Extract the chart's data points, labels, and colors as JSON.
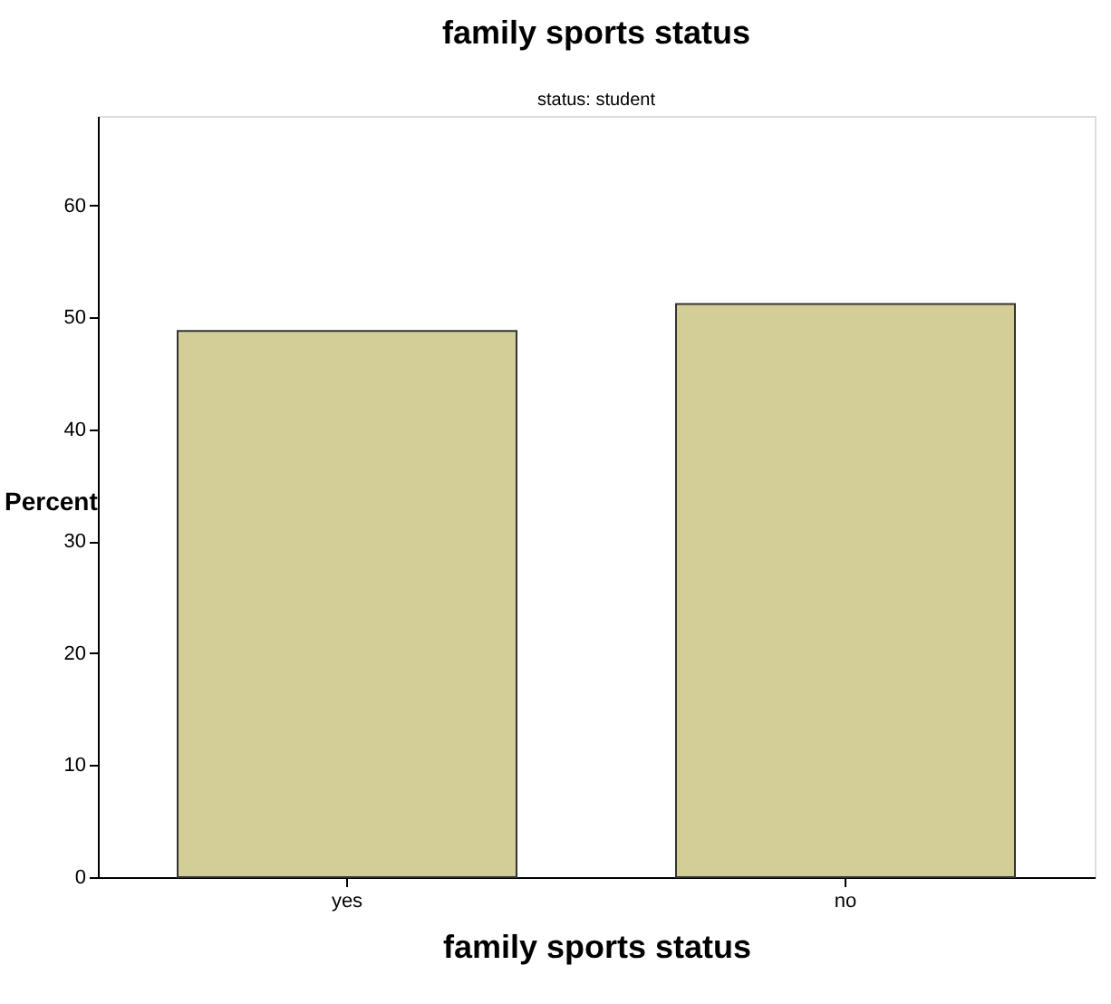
{
  "chart_data": {
    "type": "bar",
    "title": "family sports status",
    "subtitle": "status: student",
    "xlabel": "family sports status",
    "ylabel": "Percent",
    "categories": [
      "yes",
      "no"
    ],
    "values": [
      48.8,
      51.2
    ],
    "color": "#d3ce97",
    "ylim": [
      0,
      68
    ],
    "yticks": [
      0,
      10,
      20,
      30,
      40,
      50,
      60
    ],
    "grid": false,
    "legend": false
  }
}
